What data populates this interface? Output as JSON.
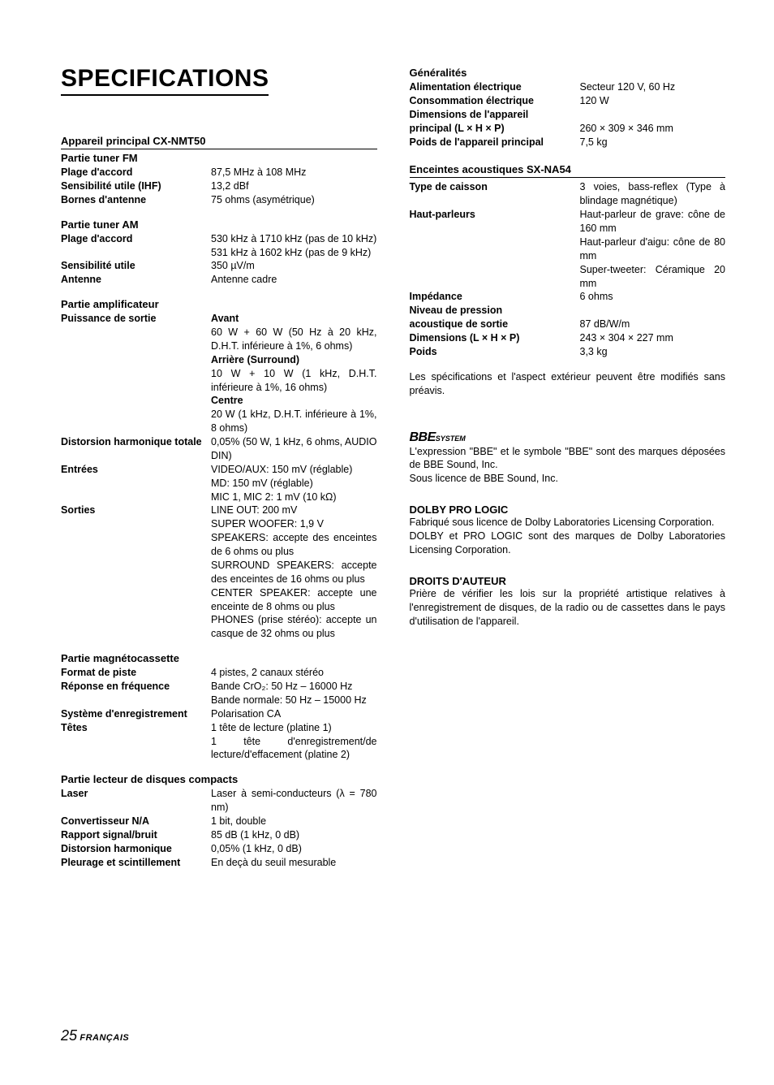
{
  "title": "SPECIFICATIONS",
  "footer": {
    "page": "25",
    "lang": "FRANÇAIS"
  },
  "main_unit": {
    "header": "Appareil principal CX-NMT50",
    "fm": {
      "header": "Partie tuner FM",
      "range_l": "Plage d'accord",
      "range_v": "87,5 MHz à 108 MHz",
      "sens_l": "Sensibilité utile (IHF)",
      "sens_v": "13,2 dBf",
      "ant_l": "Bornes d'antenne",
      "ant_v": "75 ohms (asymétrique)"
    },
    "am": {
      "header": "Partie tuner AM",
      "range_l": "Plage d'accord",
      "range_v": "530 kHz à 1710 kHz (pas de 10 kHz)\n531 kHz à 1602 kHz (pas de 9 kHz)",
      "sens_l": "Sensibilité utile",
      "sens_v": "350 µV/m",
      "ant_l": "Antenne",
      "ant_v": "Antenne cadre"
    },
    "amp": {
      "header": "Partie amplificateur",
      "pow_l": "Puissance de sortie",
      "pow_front_h": "Avant",
      "pow_front_v": "60 W + 60 W (50 Hz à 20 kHz, D.H.T. inférieure à 1%, 6 ohms)",
      "pow_rear_h": "Arrière (Surround)",
      "pow_rear_v": "10 W + 10 W (1 kHz, D.H.T. inférieure à 1%, 16 ohms)",
      "pow_ctr_h": "Centre",
      "pow_ctr_v": "20 W (1 kHz, D.H.T. inférieure à 1%, 8 ohms)",
      "thd_l": "Distorsion harmonique totale",
      "thd_v": "0,05% (50 W, 1 kHz, 6 ohms, AUDIO DIN)",
      "in_l": "Entrées",
      "in_v": "VIDEO/AUX: 150 mV (réglable)\nMD: 150 mV (réglable)\nMIC 1, MIC 2: 1 mV (10 kΩ)",
      "out_l": "Sorties",
      "out_v": "LINE OUT: 200 mV\nSUPER WOOFER: 1,9 V\nSPEAKERS: accepte des enceintes de 6 ohms ou plus\nSURROUND SPEAKERS: accepte des enceintes de 16 ohms ou plus\nCENTER SPEAKER: accepte une enceinte de 8 ohms ou plus\nPHONES (prise stéréo): accepte un casque de 32 ohms ou plus"
    },
    "deck": {
      "header": "Partie magnétocassette",
      "fmt_l": "Format de piste",
      "fmt_v": "4 pistes, 2 canaux stéréo",
      "freq_l": "Réponse en fréquence",
      "freq_v": "Bande CrO₂: 50 Hz – 16000 Hz\nBande normale: 50 Hz – 15000 Hz",
      "rec_l": "Système d'enregistrement",
      "rec_v": "Polarisation CA",
      "heads_l": "Têtes",
      "heads_v": "1 tête de lecture (platine 1)\n1 tête d'enregistrement/de lecture/d'effacement (platine 2)"
    },
    "cd": {
      "header": "Partie lecteur de disques compacts",
      "laser_l": "Laser",
      "laser_v": "Laser à semi-conducteurs (λ = 780 nm)",
      "dac_l": "Convertisseur N/A",
      "dac_v": "1 bit, double",
      "snr_l": "Rapport signal/bruit",
      "snr_v": "85 dB (1 kHz, 0 dB)",
      "thd_l": "Distorsion harmonique",
      "thd_v": "0,05% (1 kHz, 0 dB)",
      "wow_l": "Pleurage et scintillement",
      "wow_v": "En deçà du seuil mesurable"
    }
  },
  "general": {
    "header": "Généralités",
    "pow_l": "Alimentation électrique",
    "pow_v": "Secteur 120 V, 60 Hz",
    "cons_l": "Consommation électrique",
    "cons_v": "120 W",
    "dim_l1": "Dimensions de l'appareil",
    "dim_l2": "principal (L × H × P)",
    "dim_v": "260 × 309 × 346 mm",
    "wt_l": "Poids de l'appareil principal",
    "wt_v": "7,5 kg"
  },
  "speakers": {
    "header": "Enceintes acoustiques SX-NA54",
    "type_l": "Type de caisson",
    "type_v": "3 voies, bass-reflex (Type à blindage magnétique)",
    "drv_l": "Haut-parleurs",
    "drv_v": "Haut-parleur de grave: cône de 160 mm\nHaut-parleur d'aigu: cône de 80 mm\nSuper-tweeter: Céramique 20 mm",
    "imp_l": "Impédance",
    "imp_v": "6 ohms",
    "spl_l1": "Niveau de pression",
    "spl_l2": "acoustique de sortie",
    "spl_v": "87 dB/W/m",
    "dim_l": "Dimensions (L × H × P)",
    "dim_v": "243 × 304 × 227 mm",
    "wt_l": "Poids",
    "wt_v": "3,3 kg"
  },
  "notice": "Les spécifications et l'aspect extérieur peuvent être modifiés sans préavis.",
  "bbe": {
    "logo": "BBE",
    "sys": "SYSTEM",
    "p1": "L'expression \"BBE\" et le symbole \"BBE\" sont des marques déposées de BBE Sound, Inc.",
    "p2": "Sous licence de BBE Sound, Inc."
  },
  "dolby": {
    "h": "DOLBY PRO LOGIC",
    "p1": "Fabriqué sous licence de Dolby Laboratories Licensing Corporation.",
    "p2": "DOLBY et PRO LOGIC sont des marques de Dolby Laboratories Licensing Corporation."
  },
  "copyright": {
    "h": "DROITS D'AUTEUR",
    "p": "Prière de vérifier les lois sur la propriété artistique relatives à l'enregistrement de disques, de la radio ou de cassettes dans le pays d'utilisation de l'appareil."
  }
}
